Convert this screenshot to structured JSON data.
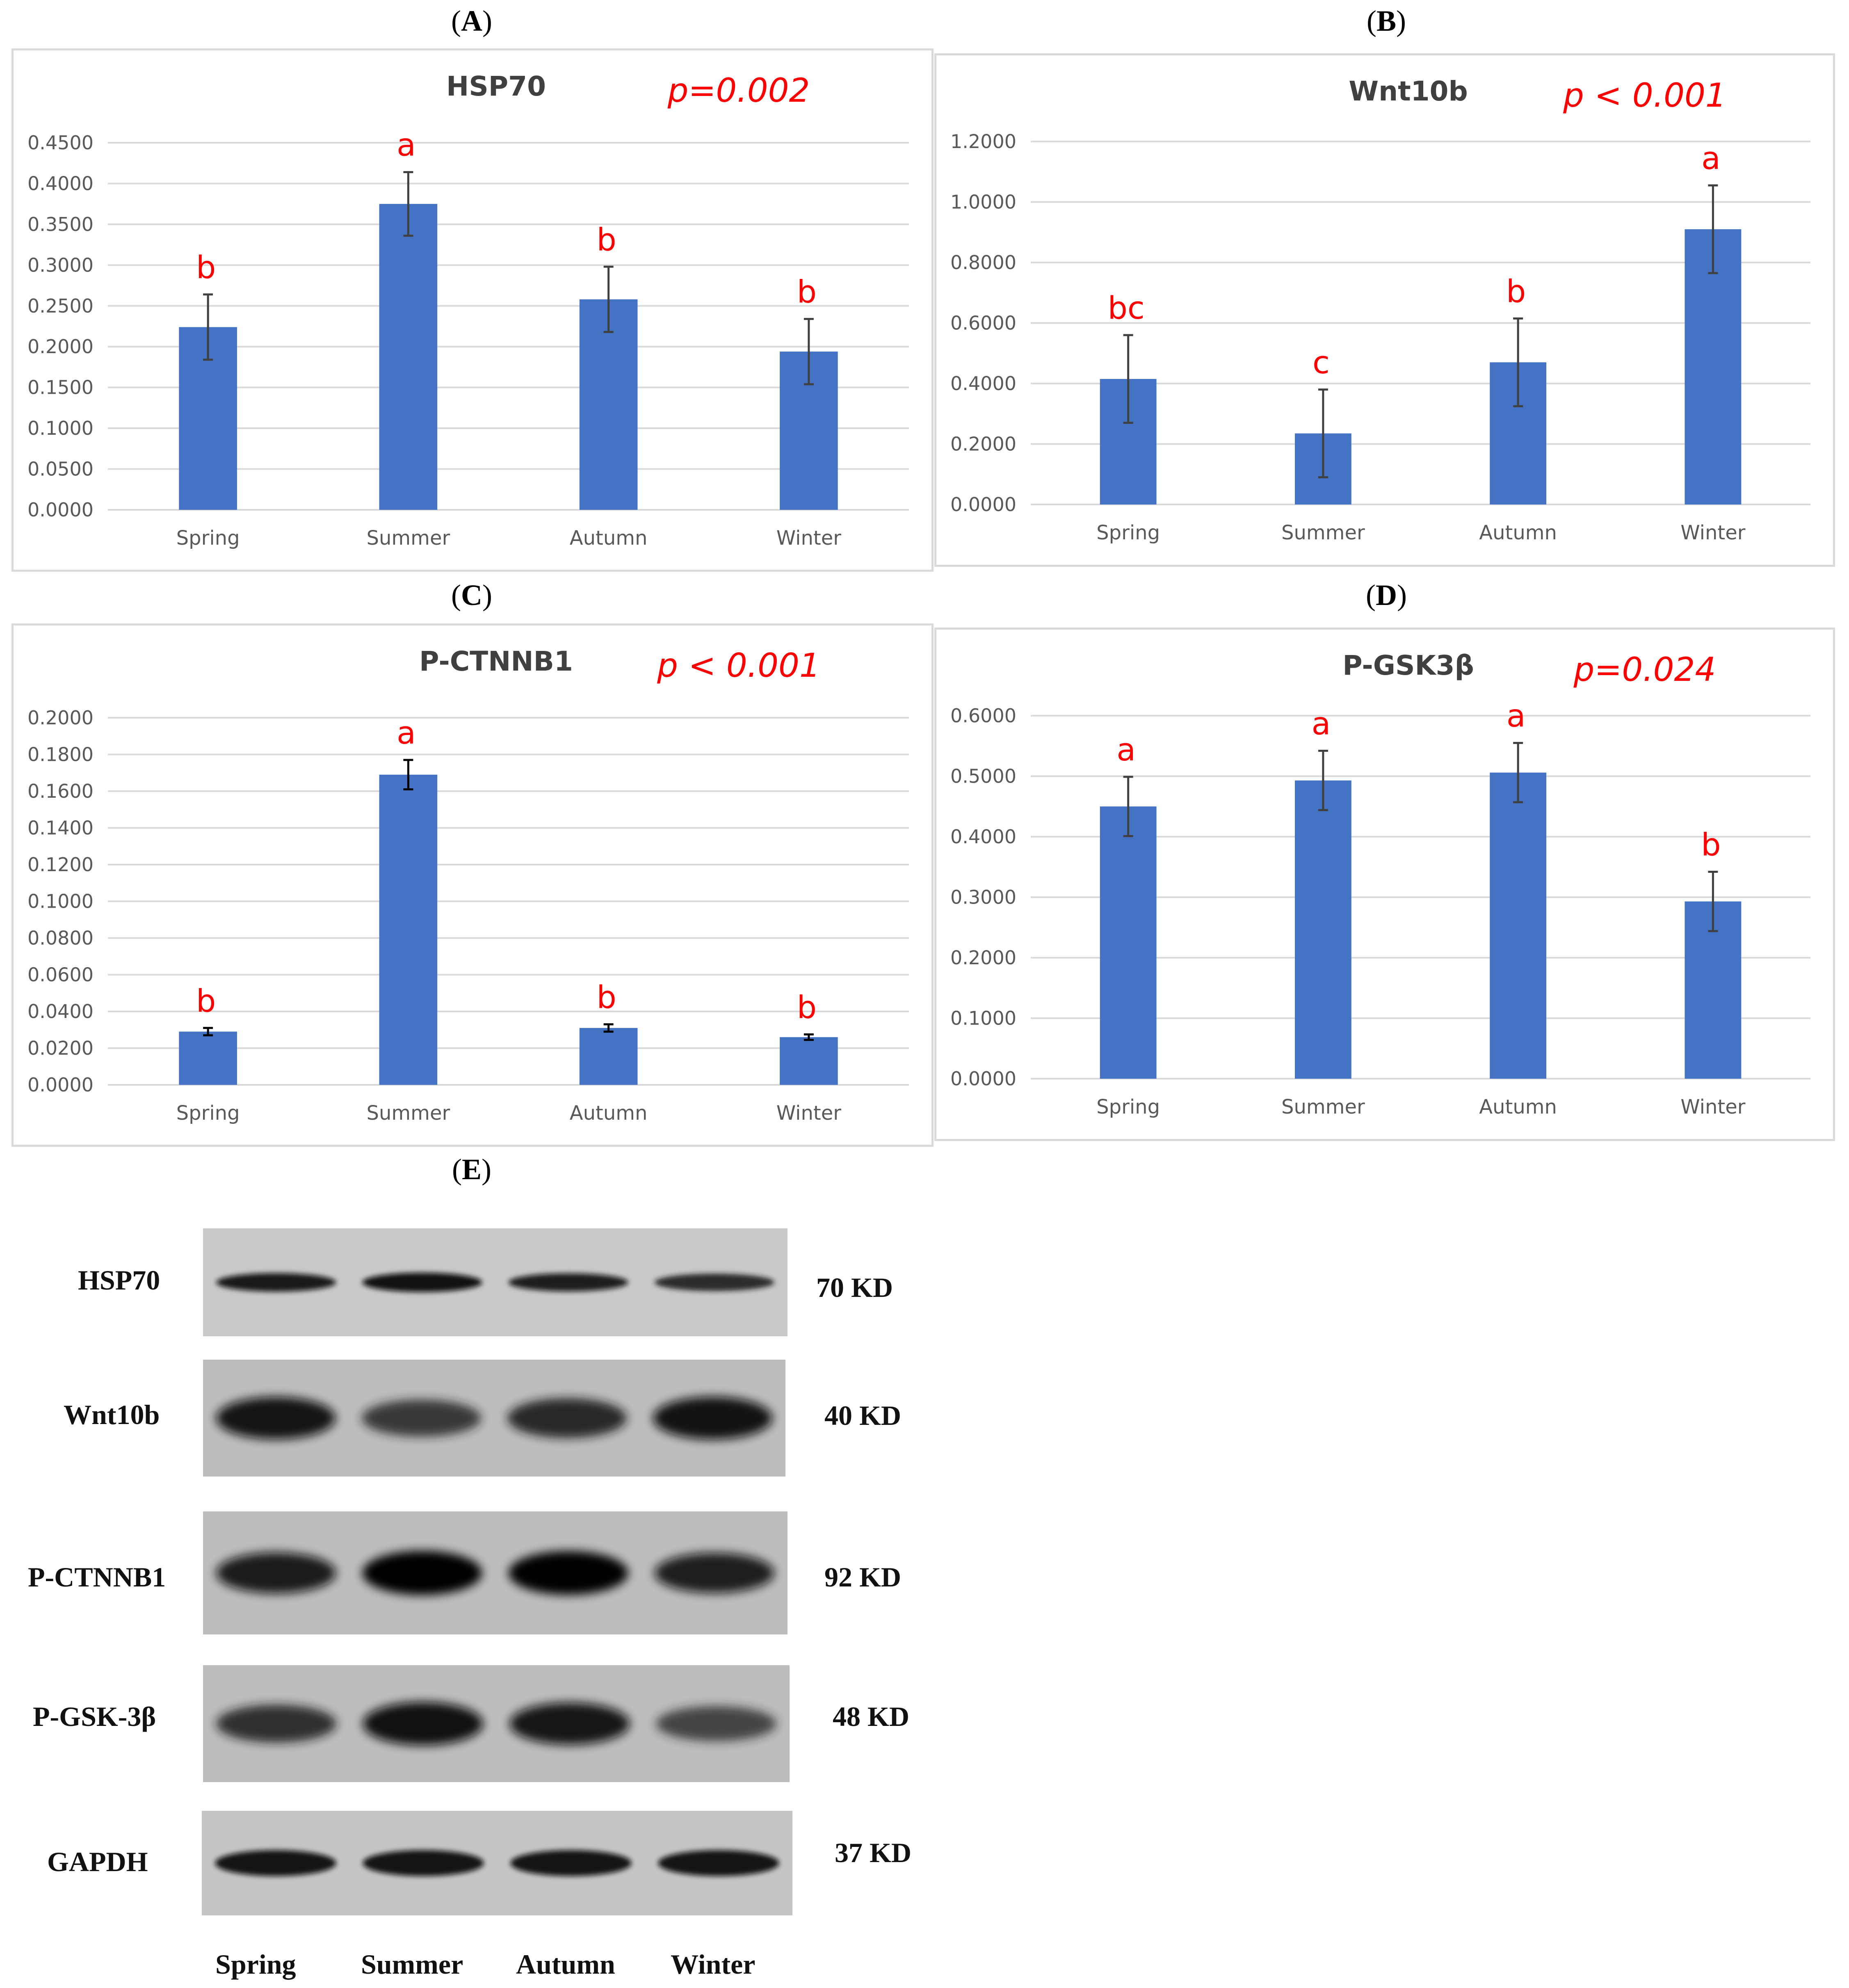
{
  "panels": {
    "A": "A",
    "B": "B",
    "C": "C",
    "D": "D",
    "E": "E"
  },
  "colors": {
    "bar": "#4472c4",
    "letters": "#ff0000",
    "grid": "#d9d9d9",
    "axis_text": "#595959"
  },
  "chart_data": [
    {
      "type": "bar",
      "panel": "A",
      "title": "HSP70",
      "pvalue": "p=0.002",
      "categories": [
        "Spring",
        "Summer",
        "Autumn",
        "Winter"
      ],
      "values": [
        0.224,
        0.375,
        0.258,
        0.194
      ],
      "errors": [
        0.04,
        0.039,
        0.04,
        0.04
      ],
      "letters": [
        "b",
        "a",
        "b",
        "b"
      ],
      "ylim": [
        0,
        0.45
      ],
      "yticks": [
        "0.0000",
        "0.0500",
        "0.1000",
        "0.1500",
        "0.2000",
        "0.2500",
        "0.3000",
        "0.3500",
        "0.4000",
        "0.4500"
      ],
      "xlabel": "",
      "ylabel": "",
      "grid": true
    },
    {
      "type": "bar",
      "panel": "B",
      "title": "Wnt10b",
      "pvalue": "p < 0.001",
      "categories": [
        "Spring",
        "Summer",
        "Autumn",
        "Winter"
      ],
      "values": [
        0.415,
        0.235,
        0.47,
        0.91
      ],
      "errors": [
        0.145,
        0.145,
        0.145,
        0.145
      ],
      "letters": [
        "bc",
        "c",
        "b",
        "a"
      ],
      "ylim": [
        0,
        1.2
      ],
      "yticks": [
        "0.0000",
        "0.2000",
        "0.4000",
        "0.6000",
        "0.8000",
        "1.0000",
        "1.2000"
      ],
      "xlabel": "",
      "ylabel": "",
      "grid": true
    },
    {
      "type": "bar",
      "panel": "C",
      "title": "P-CTNNB1",
      "pvalue": "p < 0.001",
      "categories": [
        "Spring",
        "Summer",
        "Autumn",
        "Winter"
      ],
      "values": [
        0.029,
        0.169,
        0.031,
        0.026
      ],
      "errors": [
        0.002,
        0.008,
        0.002,
        0.0015
      ],
      "letters": [
        "b",
        "a",
        "b",
        "b"
      ],
      "ylim": [
        0,
        0.2
      ],
      "yticks": [
        "0.0000",
        "0.0200",
        "0.0400",
        "0.0600",
        "0.0800",
        "0.1000",
        "0.1200",
        "0.1400",
        "0.1600",
        "0.1800",
        "0.2000"
      ],
      "xlabel": "",
      "ylabel": "",
      "grid": true
    },
    {
      "type": "bar",
      "panel": "D",
      "title": "P-GSK3β",
      "pvalue": "p=0.024",
      "categories": [
        "Spring",
        "Summer",
        "Autumn",
        "Winter"
      ],
      "values": [
        0.45,
        0.493,
        0.506,
        0.293
      ],
      "errors": [
        0.049,
        0.049,
        0.049,
        0.049
      ],
      "letters": [
        "a",
        "a",
        "a",
        "b"
      ],
      "ylim": [
        0,
        0.6
      ],
      "yticks": [
        "0.0000",
        "0.1000",
        "0.2000",
        "0.3000",
        "0.4000",
        "0.5000",
        "0.6000"
      ],
      "xlabel": "",
      "ylabel": "",
      "grid": true
    }
  ],
  "blot": {
    "rows": [
      {
        "protein": "HSP70",
        "kd": "70 KD",
        "intensity": [
          0.85,
          0.95,
          0.8,
          0.72
        ]
      },
      {
        "protein": "Wnt10b",
        "kd": "40 KD",
        "intensity": [
          0.9,
          0.6,
          0.75,
          0.92
        ]
      },
      {
        "protein": "P-CTNNB1",
        "kd": "92 KD",
        "intensity": [
          0.82,
          1.0,
          0.98,
          0.78
        ]
      },
      {
        "protein": "P-GSK-3β",
        "kd": "48 KD",
        "intensity": [
          0.65,
          0.95,
          0.88,
          0.5
        ]
      },
      {
        "protein": "GAPDH",
        "kd": "37 KD",
        "intensity": [
          0.9,
          0.9,
          0.9,
          0.9
        ]
      }
    ],
    "lanes": [
      "Spring",
      "Summer",
      "Autumn",
      "Winter"
    ]
  }
}
